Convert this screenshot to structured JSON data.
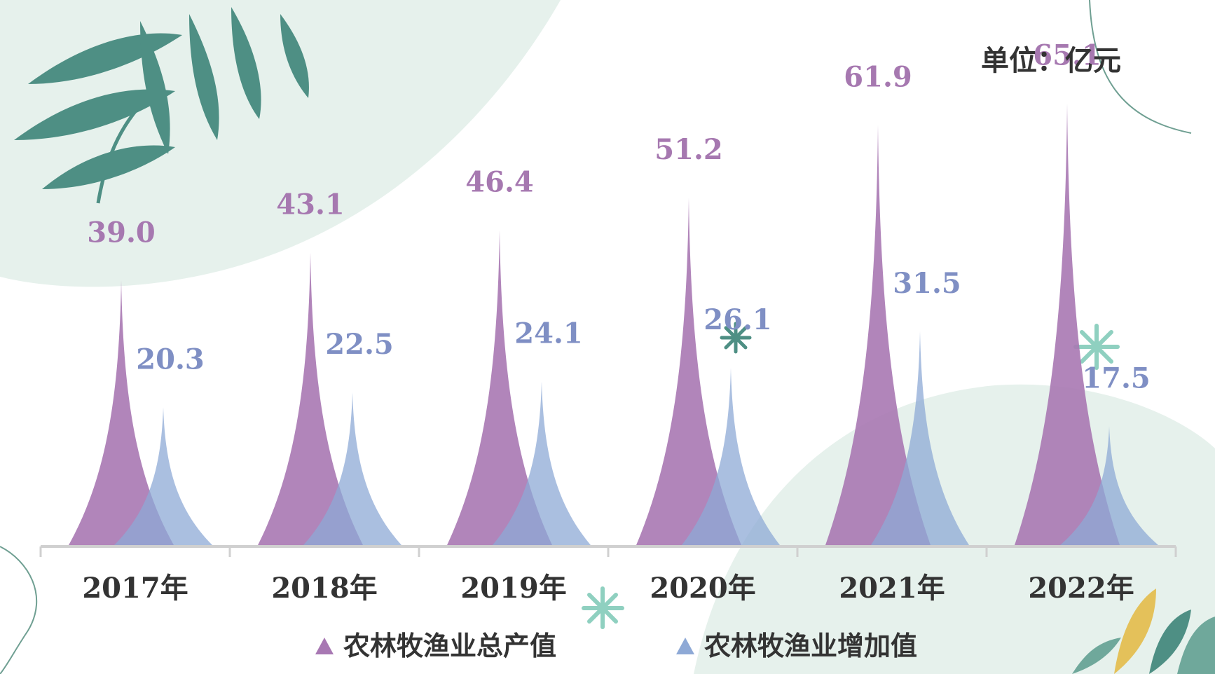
{
  "chart_data": {
    "type": "area",
    "unit_label": "单位：亿元",
    "categories": [
      "2017年",
      "2018年",
      "2019年",
      "2020年",
      "2021年",
      "2022年"
    ],
    "series": [
      {
        "name": "农林牧渔业总产值",
        "values": [
          39.0,
          43.1,
          46.4,
          51.2,
          61.9,
          65.1
        ],
        "color": "#a878b3",
        "label_color": "#a678b0"
      },
      {
        "name": "农林牧渔业增加值",
        "values": [
          20.3,
          22.5,
          24.1,
          26.1,
          31.5,
          17.5
        ],
        "color": "#8ea9d6",
        "label_color": "#7f8fc4"
      }
    ],
    "ylim": [
      0,
      70
    ],
    "legend_position": "bottom-center",
    "grid": false
  }
}
